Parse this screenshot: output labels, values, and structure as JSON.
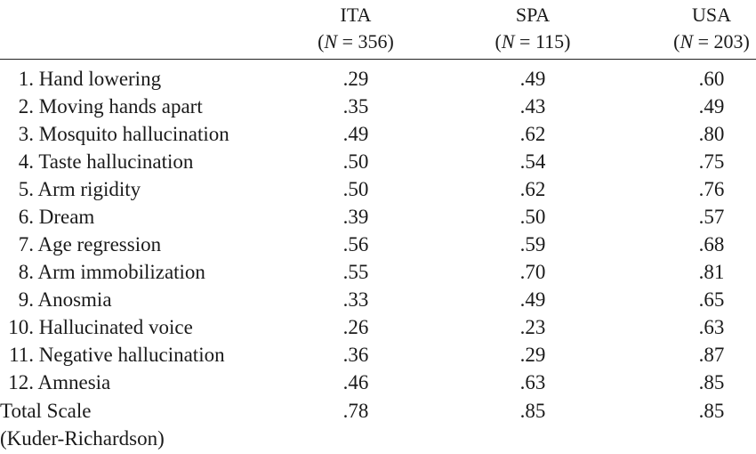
{
  "columns": [
    {
      "code": "ITA",
      "n_prefix": "(",
      "n_label": "N",
      "n_suffix": " = 356)"
    },
    {
      "code": "SPA",
      "n_prefix": "(",
      "n_label": "N",
      "n_suffix": " = 115)"
    },
    {
      "code": "USA",
      "n_prefix": "(",
      "n_label": "N",
      "n_suffix": " = 203)"
    }
  ],
  "rows": [
    {
      "num": "1.",
      "item": "Hand lowering",
      "ita": ".29",
      "spa": ".49",
      "usa": ".60"
    },
    {
      "num": "2.",
      "item": "Moving hands apart",
      "ita": ".35",
      "spa": ".43",
      "usa": ".49"
    },
    {
      "num": "3.",
      "item": "Mosquito hallucination",
      "ita": ".49",
      "spa": ".62",
      "usa": ".80"
    },
    {
      "num": "4.",
      "item": "Taste hallucination",
      "ita": ".50",
      "spa": ".54",
      "usa": ".75"
    },
    {
      "num": "5.",
      "item": "Arm rigidity",
      "ita": ".50",
      "spa": ".62",
      "usa": ".76"
    },
    {
      "num": "6.",
      "item": "Dream",
      "ita": ".39",
      "spa": ".50",
      "usa": ".57"
    },
    {
      "num": "7.",
      "item": "Age regression",
      "ita": ".56",
      "spa": ".59",
      "usa": ".68"
    },
    {
      "num": "8.",
      "item": "Arm immobilization",
      "ita": ".55",
      "spa": ".70",
      "usa": ".81"
    },
    {
      "num": "9.",
      "item": "Anosmia",
      "ita": ".33",
      "spa": ".49",
      "usa": ".65"
    },
    {
      "num": "10.",
      "item": "Hallucinated voice",
      "ita": ".26",
      "spa": ".23",
      "usa": ".63"
    },
    {
      "num": "11.",
      "item": "Negative hallucination",
      "ita": ".36",
      "spa": ".29",
      "usa": ".87"
    },
    {
      "num": "12.",
      "item": "Amnesia",
      "ita": ".46",
      "spa": ".63",
      "usa": ".85"
    }
  ],
  "total": {
    "label": "Total Scale",
    "ita": ".78",
    "spa": ".85",
    "usa": ".85"
  },
  "total_note": "(Kuder-Richardson)"
}
